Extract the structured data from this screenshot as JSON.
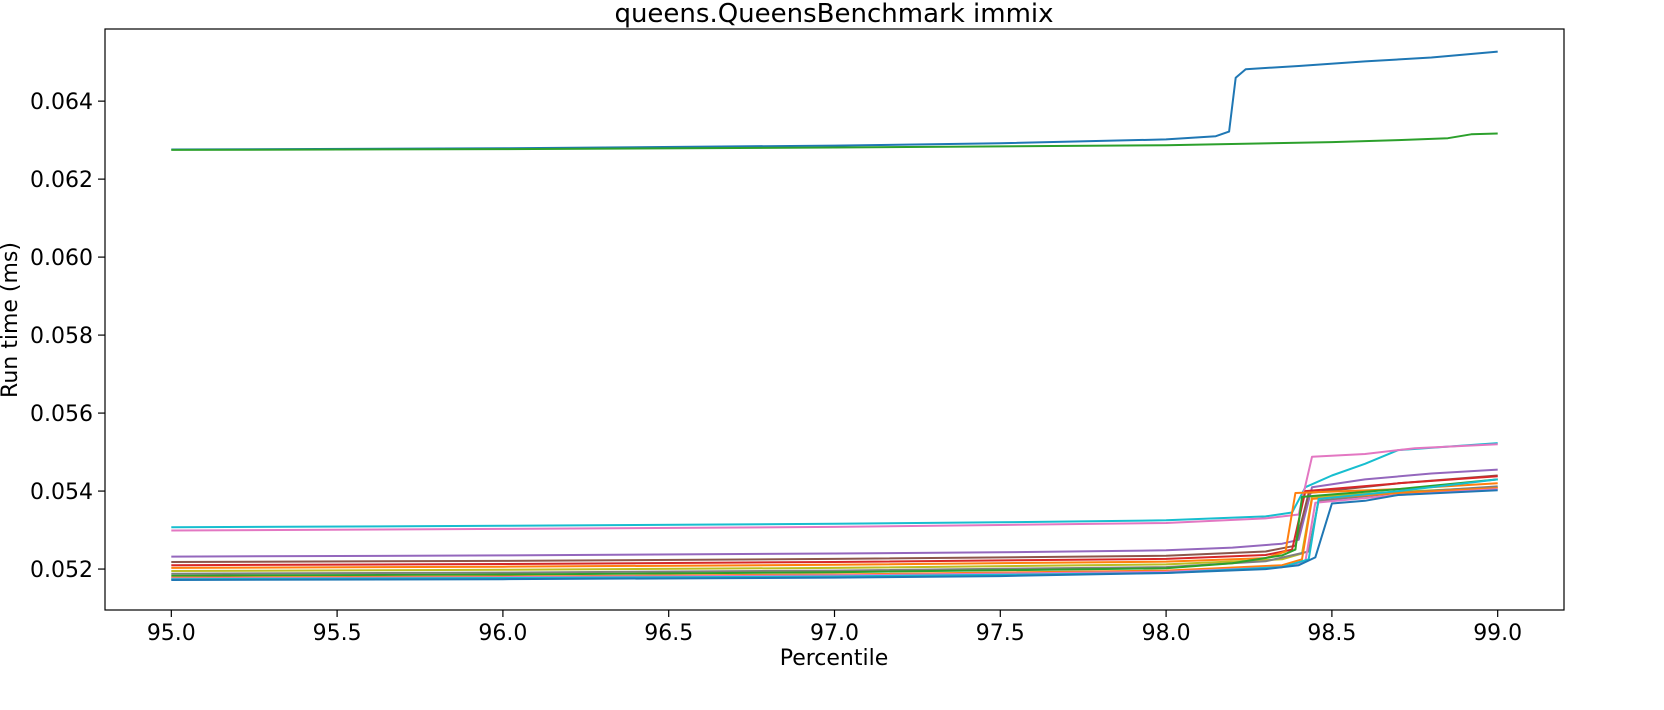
{
  "chart_data": {
    "type": "line",
    "title": "queens.QueensBenchmark immix",
    "xlabel": "Percentile",
    "ylabel": "Run time (ms)",
    "xlim": [
      94.8,
      99.2
    ],
    "ylim": [
      0.05095,
      0.06585
    ],
    "xticks": [
      "95.0",
      "95.5",
      "96.0",
      "96.5",
      "97.0",
      "97.5",
      "98.0",
      "98.5",
      "99.0"
    ],
    "yticks": [
      "0.052",
      "0.054",
      "0.056",
      "0.058",
      "0.060",
      "0.062",
      "0.064"
    ],
    "grid": false,
    "legend": "none",
    "series": [
      {
        "color": "#1f77b4",
        "points": [
          [
            95.0,
            0.06276
          ],
          [
            96.0,
            0.06279
          ],
          [
            97.0,
            0.06286
          ],
          [
            97.5,
            0.06292
          ],
          [
            98.0,
            0.06302
          ],
          [
            98.15,
            0.0631
          ],
          [
            98.19,
            0.06322
          ],
          [
            98.21,
            0.0646
          ],
          [
            98.24,
            0.06482
          ],
          [
            98.4,
            0.0649
          ],
          [
            98.6,
            0.06502
          ],
          [
            98.8,
            0.06512
          ],
          [
            99.0,
            0.06527
          ]
        ]
      },
      {
        "color": "#2ca02c",
        "points": [
          [
            95.0,
            0.06275
          ],
          [
            96.0,
            0.06277
          ],
          [
            97.0,
            0.06281
          ],
          [
            97.5,
            0.06284
          ],
          [
            98.0,
            0.06287
          ],
          [
            98.5,
            0.06295
          ],
          [
            98.7,
            0.063
          ],
          [
            98.85,
            0.06305
          ],
          [
            98.92,
            0.06315
          ],
          [
            99.0,
            0.06317
          ]
        ]
      },
      {
        "color": "#17becf",
        "points": [
          [
            95.0,
            0.05307
          ],
          [
            96.0,
            0.05311
          ],
          [
            97.0,
            0.05316
          ],
          [
            97.5,
            0.0532
          ],
          [
            98.0,
            0.05325
          ],
          [
            98.3,
            0.05335
          ],
          [
            98.38,
            0.05345
          ],
          [
            98.42,
            0.0541
          ],
          [
            98.5,
            0.0544
          ],
          [
            98.6,
            0.0547
          ],
          [
            98.7,
            0.05505
          ],
          [
            99.0,
            0.05523
          ]
        ]
      },
      {
        "color": "#e377c2",
        "points": [
          [
            95.0,
            0.05299
          ],
          [
            96.0,
            0.05303
          ],
          [
            97.0,
            0.05308
          ],
          [
            97.5,
            0.05313
          ],
          [
            98.0,
            0.05318
          ],
          [
            98.3,
            0.0533
          ],
          [
            98.4,
            0.0534
          ],
          [
            98.44,
            0.05488
          ],
          [
            98.6,
            0.05495
          ],
          [
            98.75,
            0.0551
          ],
          [
            99.0,
            0.0552
          ]
        ]
      },
      {
        "color": "#9467bd",
        "points": [
          [
            95.0,
            0.05232
          ],
          [
            96.0,
            0.05235
          ],
          [
            97.0,
            0.0524
          ],
          [
            97.5,
            0.05243
          ],
          [
            98.0,
            0.05248
          ],
          [
            98.2,
            0.05255
          ],
          [
            98.35,
            0.05265
          ],
          [
            98.4,
            0.05275
          ],
          [
            98.44,
            0.0541
          ],
          [
            98.6,
            0.0543
          ],
          [
            98.8,
            0.05445
          ],
          [
            99.0,
            0.05455
          ]
        ]
      },
      {
        "color": "#8c564b",
        "points": [
          [
            95.0,
            0.05218
          ],
          [
            96.0,
            0.05221
          ],
          [
            97.0,
            0.05226
          ],
          [
            98.0,
            0.05234
          ],
          [
            98.3,
            0.05245
          ],
          [
            98.39,
            0.0526
          ],
          [
            98.43,
            0.05395
          ],
          [
            98.7,
            0.0542
          ],
          [
            99.0,
            0.0544
          ]
        ]
      },
      {
        "color": "#d62728",
        "points": [
          [
            95.0,
            0.0521
          ],
          [
            96.0,
            0.05213
          ],
          [
            97.0,
            0.05218
          ],
          [
            98.0,
            0.05226
          ],
          [
            98.3,
            0.05236
          ],
          [
            98.38,
            0.0525
          ],
          [
            98.42,
            0.054
          ],
          [
            98.7,
            0.0542
          ],
          [
            99.0,
            0.05438
          ]
        ]
      },
      {
        "color": "#ff7f0e",
        "points": [
          [
            95.0,
            0.05203
          ],
          [
            96.0,
            0.05206
          ],
          [
            97.0,
            0.05211
          ],
          [
            98.0,
            0.05219
          ],
          [
            98.3,
            0.05228
          ],
          [
            98.36,
            0.05245
          ],
          [
            98.39,
            0.05395
          ],
          [
            98.7,
            0.05405
          ],
          [
            99.0,
            0.0542
          ]
        ]
      },
      {
        "color": "#bcbd22",
        "points": [
          [
            95.0,
            0.05195
          ],
          [
            96.0,
            0.05198
          ],
          [
            97.0,
            0.05203
          ],
          [
            98.0,
            0.05212
          ],
          [
            98.35,
            0.05225
          ],
          [
            98.41,
            0.0524
          ],
          [
            98.44,
            0.05385
          ],
          [
            98.7,
            0.05398
          ],
          [
            99.0,
            0.0541
          ]
        ]
      },
      {
        "color": "#7f7f7f",
        "points": [
          [
            95.0,
            0.05188
          ],
          [
            96.0,
            0.05191
          ],
          [
            97.0,
            0.05196
          ],
          [
            98.0,
            0.05205
          ],
          [
            98.3,
            0.0522
          ],
          [
            98.43,
            0.05245
          ],
          [
            98.46,
            0.05375
          ],
          [
            98.7,
            0.05395
          ],
          [
            99.0,
            0.05412
          ]
        ]
      },
      {
        "color": "#2ca02c",
        "points": [
          [
            95.0,
            0.05183
          ],
          [
            96.0,
            0.05186
          ],
          [
            97.0,
            0.05192
          ],
          [
            98.0,
            0.05202
          ],
          [
            98.2,
            0.05215
          ],
          [
            98.35,
            0.05235
          ],
          [
            98.39,
            0.0525
          ],
          [
            98.41,
            0.05385
          ],
          [
            98.7,
            0.05405
          ],
          [
            99.0,
            0.0543
          ]
        ]
      },
      {
        "color": "#ff7f0e",
        "points": [
          [
            95.0,
            0.05178
          ],
          [
            96.0,
            0.05181
          ],
          [
            97.0,
            0.05186
          ],
          [
            98.0,
            0.05196
          ],
          [
            98.35,
            0.0521
          ],
          [
            98.41,
            0.05225
          ],
          [
            98.44,
            0.0538
          ],
          [
            98.7,
            0.05395
          ],
          [
            99.0,
            0.05408
          ]
        ]
      },
      {
        "color": "#e377c2",
        "points": [
          [
            95.0,
            0.05176
          ],
          [
            96.0,
            0.05179
          ],
          [
            97.0,
            0.05184
          ],
          [
            98.0,
            0.05193
          ],
          [
            98.35,
            0.05205
          ],
          [
            98.42,
            0.0522
          ],
          [
            98.45,
            0.0537
          ],
          [
            98.7,
            0.0539
          ],
          [
            99.0,
            0.05405
          ]
        ]
      },
      {
        "color": "#17becf",
        "points": [
          [
            95.0,
            0.05174
          ],
          [
            96.0,
            0.05177
          ],
          [
            97.0,
            0.05181
          ],
          [
            98.0,
            0.0519
          ],
          [
            98.35,
            0.05205
          ],
          [
            98.43,
            0.05225
          ],
          [
            98.46,
            0.0538
          ],
          [
            98.7,
            0.054
          ],
          [
            99.0,
            0.0543
          ]
        ]
      },
      {
        "color": "#1f77b4",
        "points": [
          [
            95.0,
            0.05172
          ],
          [
            96.0,
            0.05174
          ],
          [
            97.0,
            0.05178
          ],
          [
            97.5,
            0.05182
          ],
          [
            98.0,
            0.0519
          ],
          [
            98.3,
            0.052
          ],
          [
            98.4,
            0.0521
          ],
          [
            98.45,
            0.0523
          ],
          [
            98.5,
            0.05368
          ],
          [
            98.6,
            0.05375
          ],
          [
            98.7,
            0.0539
          ],
          [
            99.0,
            0.05402
          ]
        ]
      }
    ]
  }
}
